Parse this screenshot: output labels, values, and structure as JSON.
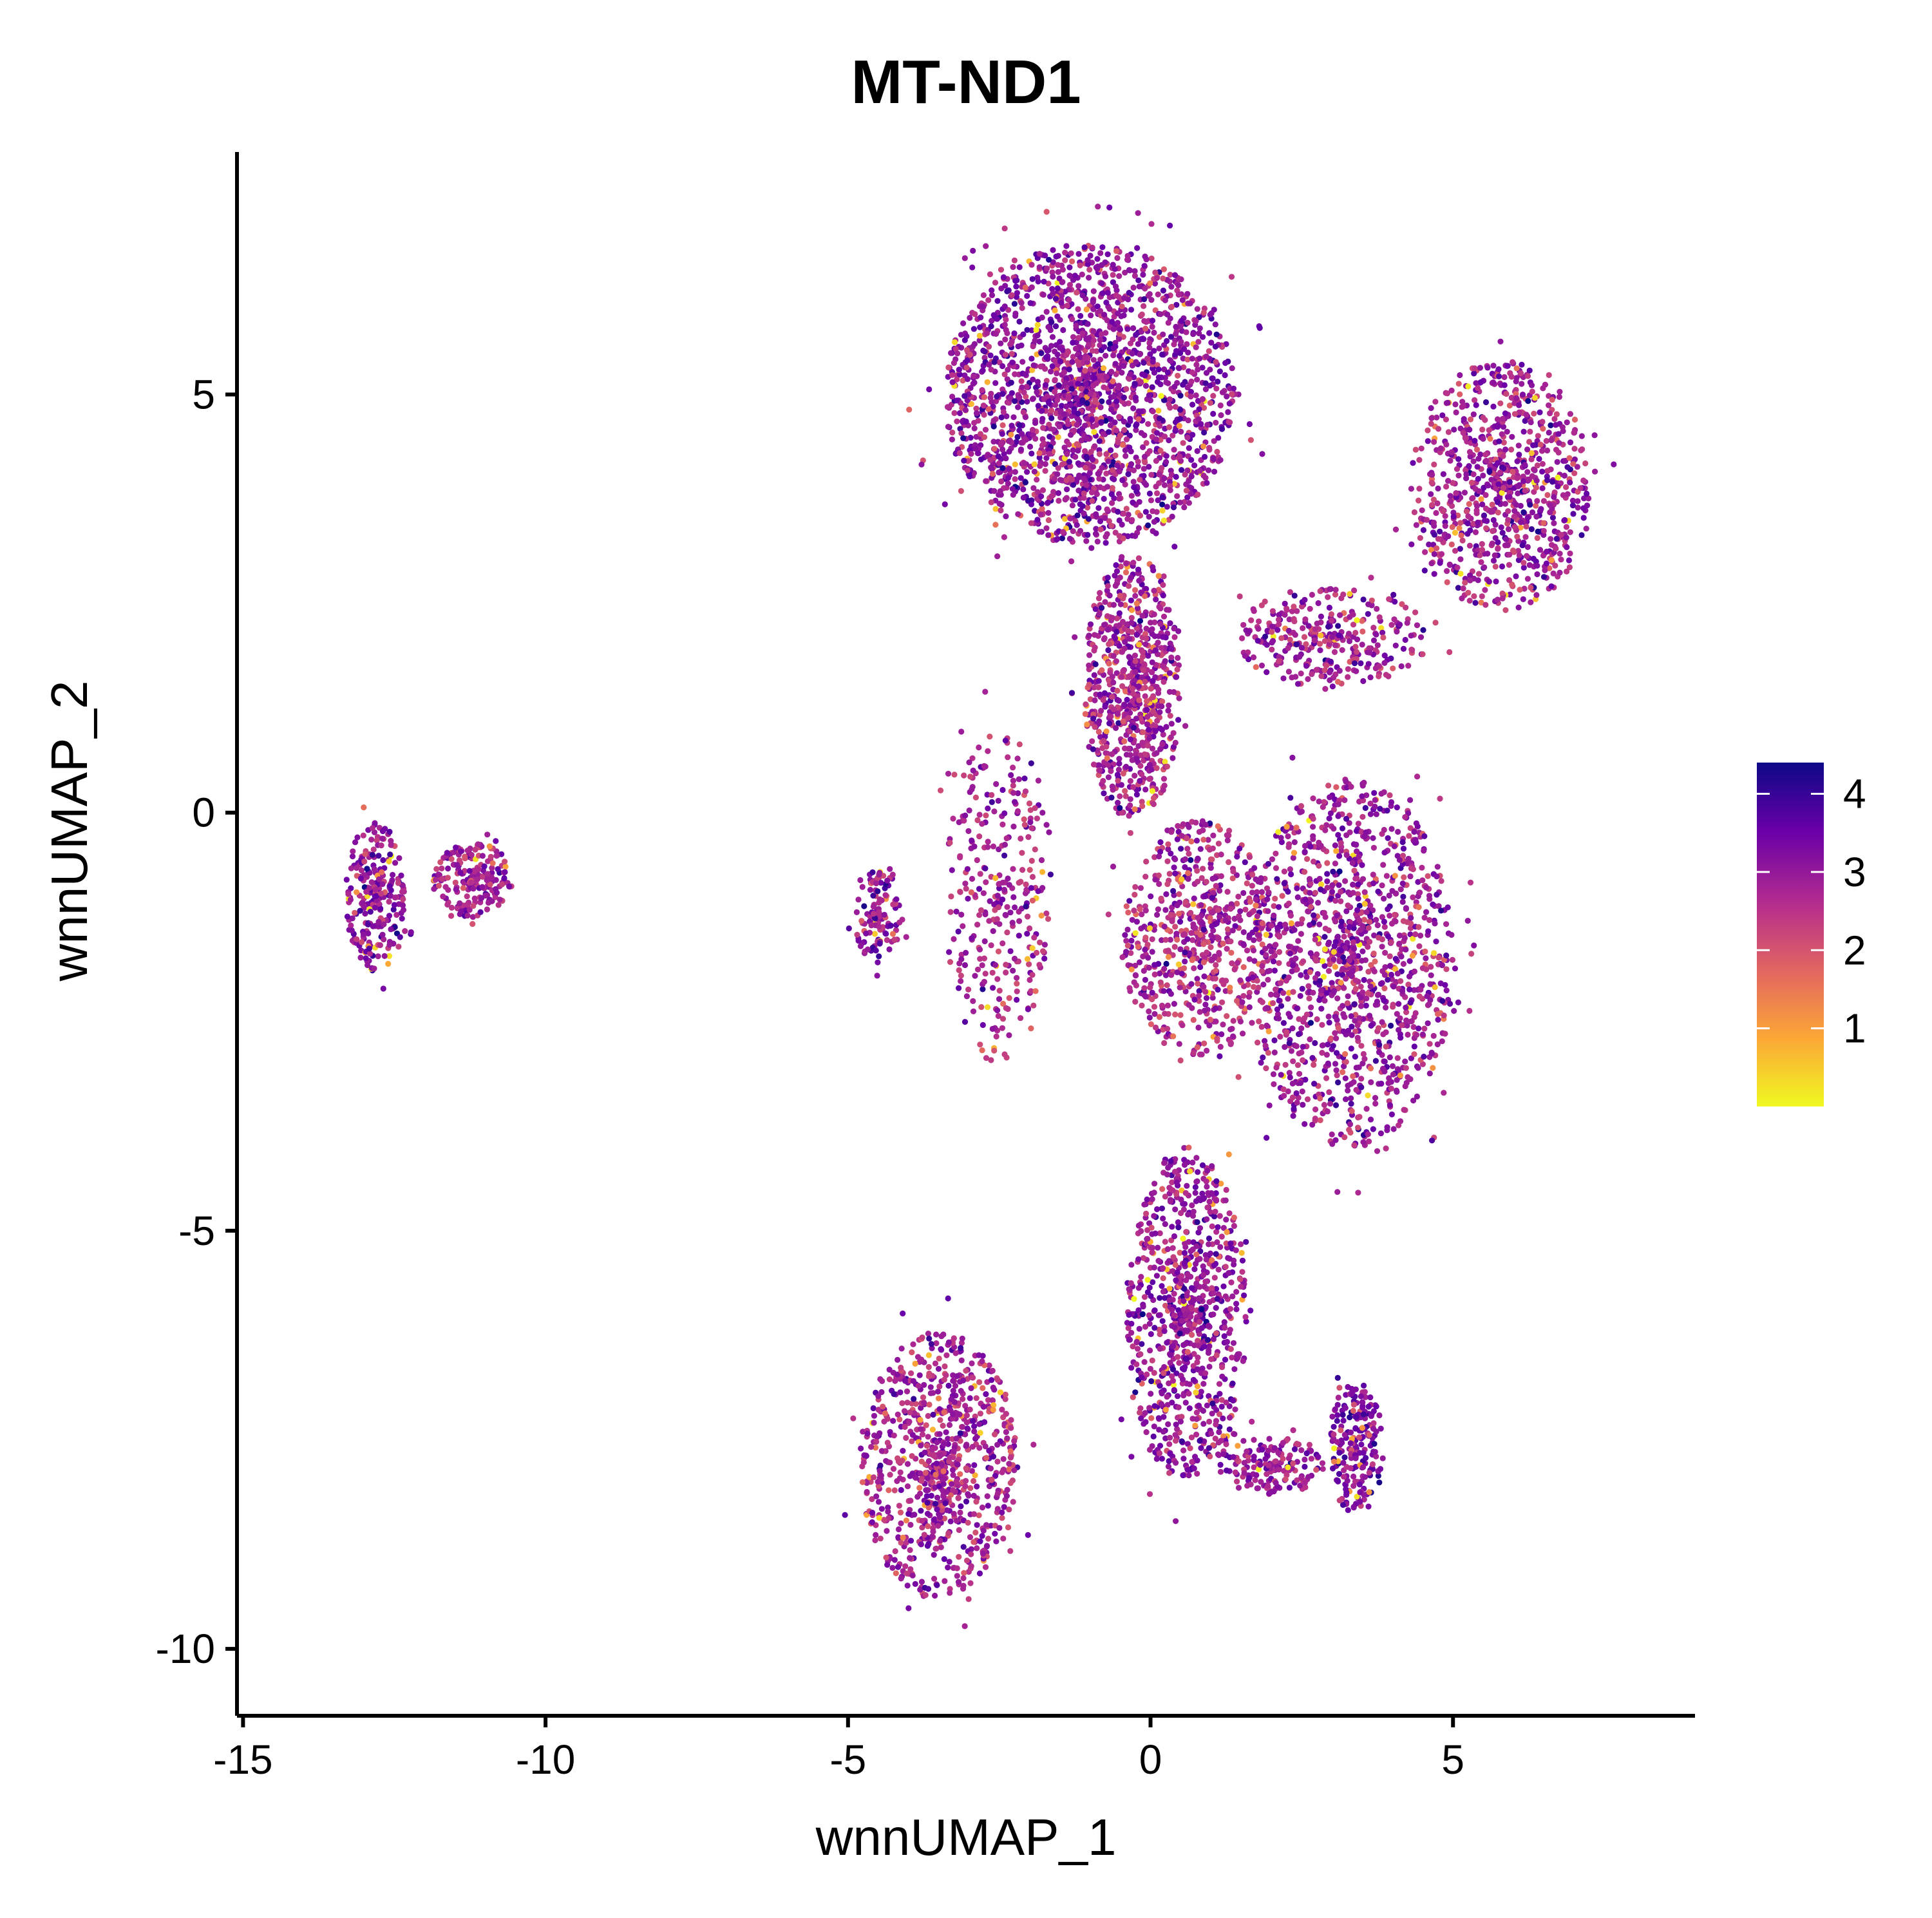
{
  "chart_data": {
    "type": "scatter",
    "title": "MT-ND1",
    "xlabel": "wnnUMAP_1",
    "ylabel": "wnnUMAP_2",
    "xlim": [
      -15.1,
      9.0
    ],
    "ylim": [
      -10.8,
      7.9
    ],
    "x_ticks": [
      -15,
      -10,
      -5,
      0,
      5
    ],
    "x_tick_labels": [
      "-15",
      "-10",
      "-5",
      "0",
      "5"
    ],
    "y_ticks": [
      -10,
      -5,
      0,
      5
    ],
    "y_tick_labels": [
      "-10",
      "-5",
      "0",
      "5"
    ],
    "grid": false,
    "legend_position": "right",
    "color_scale": {
      "name": "plasma (reversed)",
      "min": 0,
      "max": 4.4,
      "ticks": [
        1,
        2,
        3,
        4
      ],
      "tick_labels": [
        "1",
        "2",
        "3",
        "4"
      ],
      "stops": [
        "#F0F921",
        "#FCA636",
        "#E16462",
        "#B12A90",
        "#6A00A8",
        "#0D0887"
      ]
    },
    "clusters": [
      {
        "region": "top-left large lobe",
        "cx": -1.0,
        "cy": 5.0,
        "rx": 2.4,
        "ry": 1.8,
        "mean_expr": 3.0,
        "weight": 20
      },
      {
        "region": "central stalk",
        "cx": -0.3,
        "cy": 1.5,
        "rx": 0.8,
        "ry": 1.6,
        "mean_expr": 2.8,
        "weight": 7
      },
      {
        "region": "upper-right arm",
        "cx": 5.8,
        "cy": 3.9,
        "rx": 1.5,
        "ry": 1.5,
        "mean_expr": 2.9,
        "weight": 8
      },
      {
        "region": "diagonal connector",
        "cx": 3.0,
        "cy": 2.1,
        "rx": 1.6,
        "ry": 0.6,
        "mean_expr": 2.8,
        "weight": 3
      },
      {
        "region": "right middle mass",
        "cx": 3.3,
        "cy": -1.8,
        "rx": 1.7,
        "ry": 2.2,
        "mean_expr": 2.9,
        "weight": 12
      },
      {
        "region": "middle band",
        "cx": 0.8,
        "cy": -1.5,
        "rx": 1.3,
        "ry": 1.4,
        "mean_expr": 2.7,
        "weight": 6
      },
      {
        "region": "lower diagonal",
        "cx": 0.6,
        "cy": -6.0,
        "rx": 1.0,
        "ry": 2.0,
        "mean_expr": 3.0,
        "weight": 8
      },
      {
        "region": "lower-left",
        "cx": -3.5,
        "cy": -7.8,
        "rx": 1.3,
        "ry": 1.6,
        "mean_expr": 2.8,
        "weight": 8
      },
      {
        "region": "lower-right small",
        "cx": 3.4,
        "cy": -7.6,
        "rx": 0.45,
        "ry": 0.8,
        "mean_expr": 3.2,
        "weight": 2
      },
      {
        "region": "lower-right tail",
        "cx": 2.0,
        "cy": -7.8,
        "rx": 0.9,
        "ry": 0.35,
        "mean_expr": 2.9,
        "weight": 1.5
      },
      {
        "region": "left-middle small",
        "cx": -4.5,
        "cy": -1.2,
        "rx": 0.4,
        "ry": 0.6,
        "mean_expr": 3.0,
        "weight": 1.2
      },
      {
        "region": "sparse left thread",
        "cx": -2.5,
        "cy": -1.0,
        "rx": 0.9,
        "ry": 2.0,
        "mean_expr": 2.8,
        "weight": 3
      },
      {
        "region": "isolated cluster A",
        "cx": -12.8,
        "cy": -1.0,
        "rx": 0.5,
        "ry": 0.9,
        "mean_expr": 3.0,
        "weight": 2.5
      },
      {
        "region": "isolated cluster B",
        "cx": -11.2,
        "cy": -0.8,
        "rx": 0.65,
        "ry": 0.45,
        "mean_expr": 2.8,
        "weight": 2
      }
    ]
  }
}
